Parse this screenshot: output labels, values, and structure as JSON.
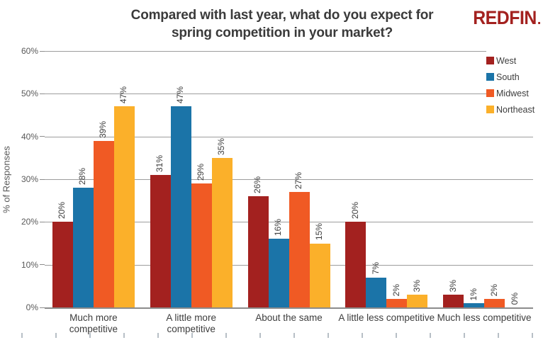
{
  "logo": {
    "text": "REDFIN"
  },
  "chart_data": {
    "type": "bar",
    "title": "Compared with last year, what do you expect for spring competition in your market?",
    "categories": [
      "Much more competitive",
      "A little more competitive",
      "About the same",
      "A little less competitive",
      "Much less competitive"
    ],
    "series": [
      {
        "name": "West",
        "color": "#A3211F",
        "values": [
          20,
          31,
          26,
          20,
          3
        ]
      },
      {
        "name": "South",
        "color": "#1B74A8",
        "values": [
          28,
          47,
          16,
          7,
          1
        ]
      },
      {
        "name": "Midwest",
        "color": "#F05A24",
        "values": [
          39,
          29,
          27,
          2,
          2
        ]
      },
      {
        "name": "Northeast",
        "color": "#FBB02A",
        "values": [
          47,
          35,
          15,
          3,
          0
        ]
      }
    ],
    "xlabel": "",
    "ylabel": "% of Responses",
    "ylim": [
      0,
      60
    ],
    "ytick_step": 10,
    "ytick_labels": [
      "0%",
      "10%",
      "20%",
      "30%",
      "40%",
      "50%",
      "60%"
    ],
    "value_label_suffix": "%",
    "grid": true,
    "legend_position": "top-right"
  },
  "colors": {
    "logo_red": "#A3211F",
    "title_text": "#3a3a3a",
    "axis_text": "#595959",
    "label_text": "#3d3d3d",
    "gridline": "#9d9d9d",
    "axis_line": "#8c8c8c",
    "bottom_tick": "#b7bfc6"
  }
}
